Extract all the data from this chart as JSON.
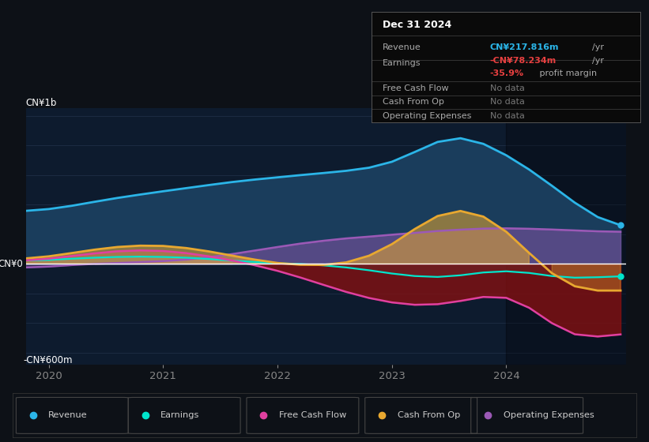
{
  "bg_color": "#0d1117",
  "plot_bg_color": "#0d1b2e",
  "title_date": "Dec 31 2024",
  "ylabel_top": "CN¥1b",
  "ylabel_zero": "CN¥0",
  "ylabel_bottom": "-CN¥600m",
  "xlabel_years": [
    "2020",
    "2021",
    "2022",
    "2023",
    "2024"
  ],
  "colors": {
    "revenue": "#2bb5e8",
    "revenue_fill": "#1a3d5c",
    "earnings": "#00e5cc",
    "free_cash_flow": "#e040a0",
    "cash_from_op": "#e8a830",
    "op_expenses": "#9b59b6",
    "dark_fill": "#8b1010"
  },
  "legend": [
    {
      "label": "Revenue",
      "color": "#2bb5e8"
    },
    {
      "label": "Earnings",
      "color": "#00e5cc"
    },
    {
      "label": "Free Cash Flow",
      "color": "#e040a0"
    },
    {
      "label": "Cash From Op",
      "color": "#e8a830"
    },
    {
      "label": "Operating Expenses",
      "color": "#9b59b6"
    }
  ],
  "x": [
    2019.8,
    2020.0,
    2020.2,
    2020.4,
    2020.6,
    2020.8,
    2021.0,
    2021.2,
    2021.4,
    2021.6,
    2021.8,
    2022.0,
    2022.2,
    2022.4,
    2022.6,
    2022.8,
    2023.0,
    2023.2,
    2023.4,
    2023.6,
    2023.8,
    2024.0,
    2024.2,
    2024.4,
    2024.6,
    2024.8,
    2025.0
  ],
  "revenue": [
    350,
    360,
    390,
    420,
    450,
    470,
    490,
    510,
    535,
    555,
    570,
    585,
    600,
    615,
    625,
    640,
    660,
    730,
    870,
    930,
    820,
    740,
    650,
    540,
    400,
    280,
    218
  ],
  "earnings": [
    20,
    25,
    35,
    45,
    50,
    52,
    50,
    45,
    35,
    22,
    10,
    5,
    0,
    -5,
    -20,
    -40,
    -70,
    -90,
    -105,
    -90,
    -50,
    -20,
    -55,
    -95,
    -115,
    -85,
    -78
  ],
  "free_cash_flow": [
    15,
    30,
    55,
    75,
    90,
    100,
    95,
    80,
    55,
    25,
    -5,
    -40,
    -90,
    -140,
    -195,
    -240,
    -270,
    -290,
    -290,
    -265,
    -210,
    -150,
    -250,
    -430,
    -570,
    -500,
    -450
  ],
  "cash_from_op": [
    25,
    45,
    75,
    100,
    120,
    135,
    130,
    115,
    90,
    55,
    25,
    0,
    -15,
    -20,
    -10,
    30,
    100,
    240,
    380,
    420,
    360,
    260,
    80,
    -120,
    -220,
    -190,
    -170
  ],
  "op_expenses": [
    -30,
    -20,
    -8,
    2,
    8,
    12,
    16,
    25,
    40,
    65,
    90,
    115,
    140,
    160,
    175,
    185,
    195,
    210,
    225,
    235,
    240,
    245,
    240,
    232,
    225,
    220,
    215
  ]
}
